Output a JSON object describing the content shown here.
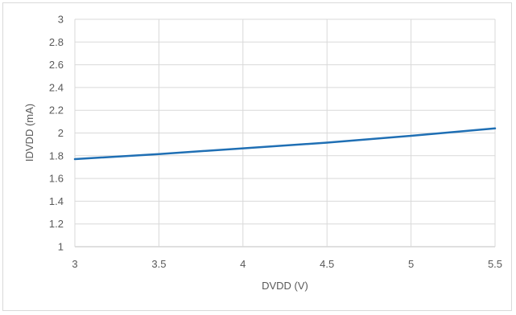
{
  "chart_data": {
    "type": "line",
    "xlabel": "DVDD (V)",
    "ylabel": "IDVDD (mA)",
    "xlim": [
      3,
      5.5
    ],
    "ylim": [
      1,
      3
    ],
    "x_ticks": [
      "3",
      "3.5",
      "4",
      "4.5",
      "5",
      "5.5"
    ],
    "y_ticks": [
      "1",
      "1.2",
      "1.4",
      "1.6",
      "1.8",
      "2",
      "2.2",
      "2.4",
      "2.6",
      "2.8",
      "3"
    ],
    "grid": true,
    "legend": "none",
    "series": [
      {
        "color": "#1f6fb4",
        "x": [
          3.0,
          3.5,
          4.0,
          4.5,
          5.0,
          5.5
        ],
        "y": [
          1.77,
          1.815,
          1.865,
          1.915,
          1.975,
          2.04
        ]
      }
    ]
  }
}
